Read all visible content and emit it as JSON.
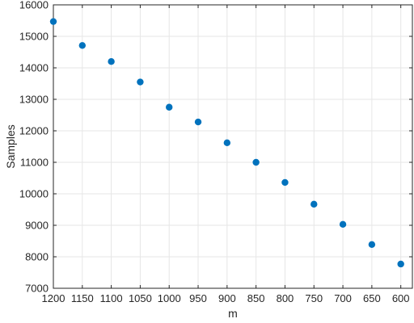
{
  "chart_data": {
    "type": "scatter",
    "xlabel": "m",
    "ylabel": "Samples",
    "x_reversed": true,
    "xlim": [
      1200,
      580
    ],
    "ylim": [
      7000,
      16000
    ],
    "xticks": [
      1200,
      1150,
      1100,
      1050,
      1000,
      950,
      900,
      850,
      800,
      750,
      700,
      650,
      600
    ],
    "yticks": [
      7000,
      8000,
      9000,
      10000,
      11000,
      12000,
      13000,
      14000,
      15000,
      16000
    ],
    "grid": true,
    "marker_color": "#0072BD",
    "series": [
      {
        "x": [
          1200,
          1150,
          1100,
          1050,
          1000,
          950,
          900,
          850,
          800,
          750,
          700,
          650,
          600
        ],
        "y": [
          15470,
          14710,
          14200,
          13550,
          12750,
          12280,
          11620,
          11000,
          10360,
          9670,
          9030,
          8390,
          7770
        ]
      }
    ]
  }
}
